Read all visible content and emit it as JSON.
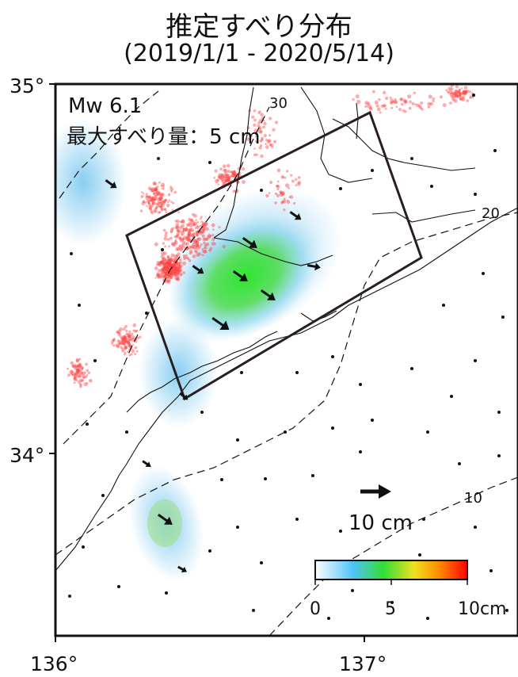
{
  "title": "推定すべり分布",
  "period": "(2019/1/1 - 2020/5/14)",
  "magnitude": "Mw 6.1",
  "max_slip": "最大すべり量：5 cm",
  "lat_labels": {
    "north": "35°",
    "south": "34°"
  },
  "lon_labels": {
    "west": "136°",
    "east": "137°"
  },
  "depth_labels": {
    "d30": "30",
    "d20": "20",
    "d10": "10"
  },
  "scale_arrow": "10 cm",
  "colorbar": {
    "ticks": [
      "0",
      "5",
      "10cm"
    ],
    "colors": [
      "#ffffff",
      "#4fc3f7",
      "#33dd33",
      "#f0e020",
      "#ff8800",
      "#ff0000"
    ]
  },
  "colors": {
    "coast": "#111111",
    "fault": "#2a1f1f",
    "lfe": "#ff4444"
  }
}
